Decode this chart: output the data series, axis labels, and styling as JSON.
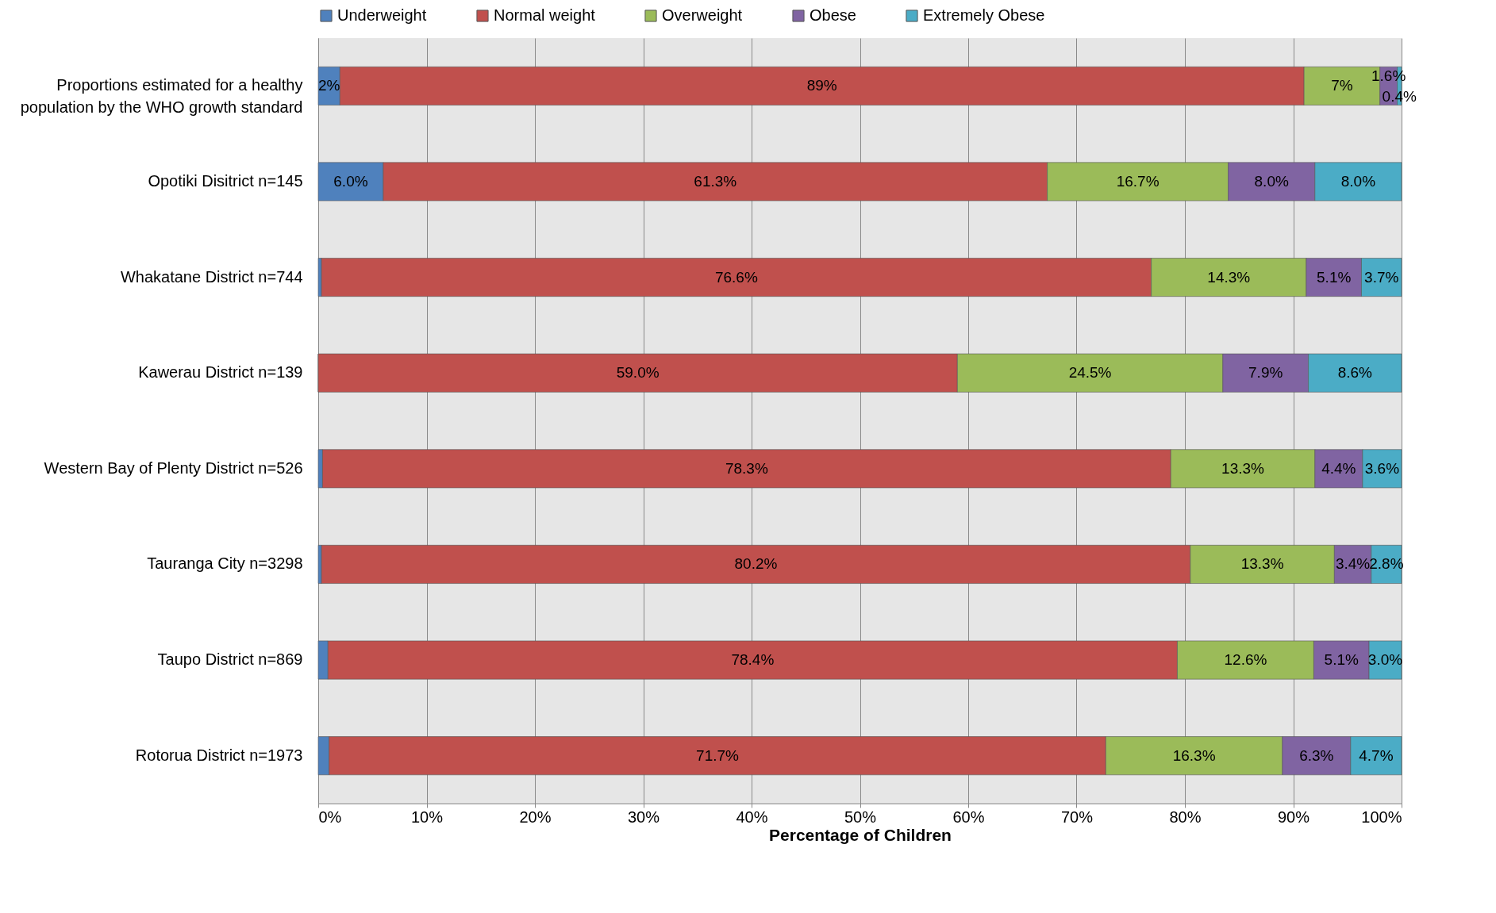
{
  "chart_data": {
    "type": "bar",
    "orientation": "horizontal",
    "stacked": true,
    "xlabel": "Percentage of Children",
    "categories": [
      "Proportions estimated for a healthy population by the WHO growth standard",
      "Opotiki Disitrict n=145",
      "Whakatane District n=744",
      "Kawerau District n=139",
      "Western Bay of Plenty District n=526",
      "Tauranga City n=3298",
      "Taupo District n=869",
      "Rotorua District n=1973"
    ],
    "series": [
      {
        "name": "Underweight",
        "color": "#4f81bd",
        "values": [
          2,
          6.0,
          0.3,
          0,
          0.4,
          0.3,
          0.9,
          1.0
        ],
        "value_labels": [
          "2%",
          "6.0%",
          null,
          null,
          null,
          null,
          null,
          null
        ]
      },
      {
        "name": "Normal weight",
        "color": "#c0504d",
        "values": [
          89,
          61.3,
          76.6,
          59.0,
          78.3,
          80.2,
          78.4,
          71.7
        ],
        "value_labels": [
          "89%",
          "61.3%",
          "76.6%",
          "59.0%",
          "78.3%",
          "80.2%",
          "78.4%",
          "71.7%"
        ]
      },
      {
        "name": "Overweight",
        "color": "#9bbb59",
        "values": [
          7,
          16.7,
          14.3,
          24.5,
          13.3,
          13.3,
          12.6,
          16.3
        ],
        "value_labels": [
          "7%",
          "16.7%",
          "14.3%",
          "24.5%",
          "13.3%",
          "13.3%",
          "12.6%",
          "16.3%"
        ]
      },
      {
        "name": "Obese",
        "color": "#8064a2",
        "values": [
          1.6,
          8.0,
          5.1,
          7.9,
          4.4,
          3.4,
          5.1,
          6.3
        ],
        "value_labels": [
          "1.6%",
          "8.0%",
          "5.1%",
          "7.9%",
          "4.4%",
          "3.4%",
          "5.1%",
          "6.3%"
        ]
      },
      {
        "name": "Extremely Obese",
        "color": "#4bacc6",
        "values": [
          0.4,
          8.0,
          3.7,
          8.6,
          3.6,
          2.8,
          3.0,
          4.7
        ],
        "value_labels": [
          "0.4%",
          "8.0%",
          "3.7%",
          "8.6%",
          "3.6%",
          "2.8%",
          "3.0%",
          "4.7%"
        ]
      }
    ],
    "xlim": [
      0,
      100
    ],
    "xticks": [
      {
        "value": 0,
        "label": "0%"
      },
      {
        "value": 10,
        "label": "10%"
      },
      {
        "value": 20,
        "label": "20%"
      },
      {
        "value": 30,
        "label": "30%"
      },
      {
        "value": 40,
        "label": "40%"
      },
      {
        "value": 50,
        "label": "50%"
      },
      {
        "value": 60,
        "label": "60%"
      },
      {
        "value": 70,
        "label": "70%"
      },
      {
        "value": 80,
        "label": "80%"
      },
      {
        "value": 90,
        "label": "90%"
      },
      {
        "value": 100,
        "label": "100%"
      }
    ],
    "grid": "x",
    "legend": "top"
  }
}
